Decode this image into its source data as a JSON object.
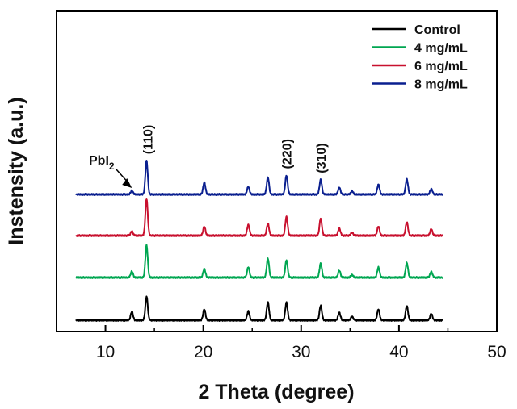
{
  "chart_data": {
    "type": "line",
    "title": "",
    "xlabel": "2 Theta (degree)",
    "ylabel": "Instensity (a.u.)",
    "xlim": [
      5,
      50
    ],
    "xticks": [
      10,
      20,
      30,
      40,
      50
    ],
    "y_tick_labels": "none",
    "grid": false,
    "legend_placement": "top-right",
    "peaks_2theta": [
      12.7,
      14.2,
      20.1,
      24.6,
      26.6,
      28.5,
      32.0,
      33.9,
      35.2,
      37.9,
      40.8,
      43.3
    ],
    "series": [
      {
        "name": "Control",
        "color": "#000000",
        "offset": 0,
        "intensities": [
          0.28,
          0.78,
          0.36,
          0.29,
          0.59,
          0.58,
          0.48,
          0.25,
          0.12,
          0.36,
          0.47,
          0.21
        ]
      },
      {
        "name": "4 mg/mL",
        "color": "#00a651",
        "offset": 1,
        "intensities": [
          0.2,
          1.05,
          0.28,
          0.34,
          0.62,
          0.57,
          0.46,
          0.23,
          0.09,
          0.33,
          0.48,
          0.19
        ]
      },
      {
        "name": "6 mg/mL",
        "color": "#c8102e",
        "offset": 2,
        "intensities": [
          0.14,
          1.2,
          0.29,
          0.35,
          0.39,
          0.61,
          0.56,
          0.23,
          0.1,
          0.3,
          0.44,
          0.21
        ]
      },
      {
        "name": "8 mg/mL",
        "color": "#0a1f8f",
        "offset": 3,
        "intensities": [
          0.12,
          1.1,
          0.39,
          0.25,
          0.56,
          0.62,
          0.48,
          0.23,
          0.11,
          0.32,
          0.5,
          0.18
        ]
      }
    ],
    "annotations": [
      {
        "text": "(110)",
        "x": 14.3,
        "rotated": true
      },
      {
        "text": "(220)",
        "x": 28.5,
        "rotated": true
      },
      {
        "text": "(310)",
        "x": 32.0,
        "rotated": true
      },
      {
        "text": "PbI",
        "subscript": "2",
        "x": 12.7,
        "arrow": true
      }
    ]
  }
}
